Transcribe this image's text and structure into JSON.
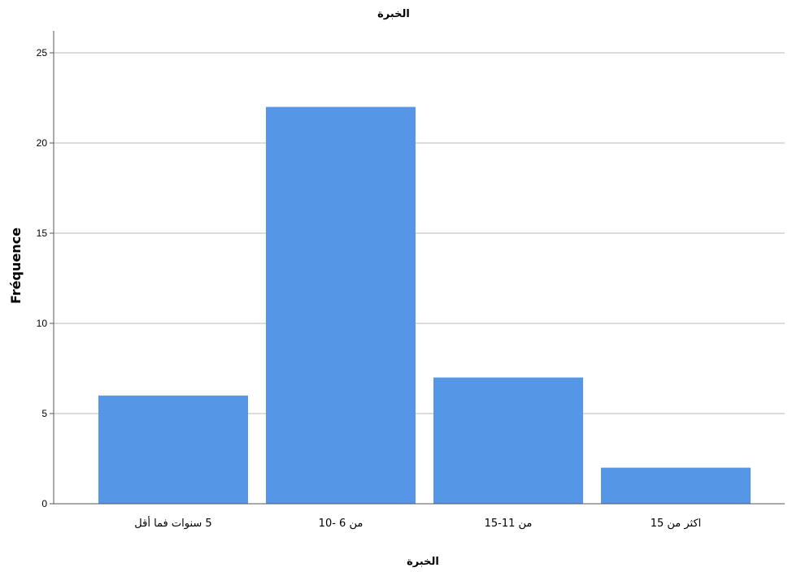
{
  "chart_data": {
    "type": "bar",
    "title": "الخبرة",
    "xlabel": "الخبرة",
    "ylabel": "Fréquence",
    "categories": [
      "5 سنوات فما أقل",
      "من 6 -10",
      "من 11-15",
      "اكثر من 15"
    ],
    "values": [
      6,
      22,
      7,
      2
    ],
    "ylim": [
      0,
      25
    ],
    "yticks": [
      "0",
      "5",
      "10",
      "15",
      "20",
      "25"
    ],
    "grid": true,
    "bar_color": "#5596e6",
    "grid_color": "#d0d0d0",
    "axis_color": "#555555"
  }
}
